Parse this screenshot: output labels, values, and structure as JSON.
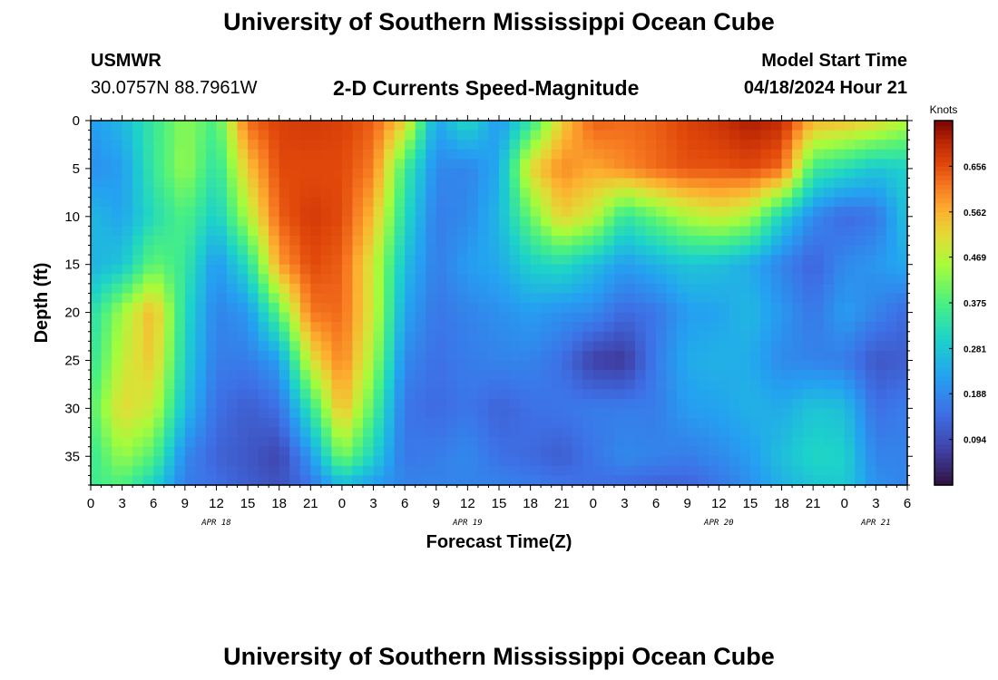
{
  "page": {
    "title": "University of Southern Mississippi Ocean Cube",
    "title_repeat": "University of Southern Mississippi Ocean Cube",
    "station_id": "USMWR",
    "station_coords": "30.0757N  88.7961W",
    "chart_title": "2-D Currents Speed-Magnitude",
    "model_start_label": "Model Start Time",
    "model_start_value": "04/18/2024 Hour 21"
  },
  "chart_data": {
    "type": "heatmap",
    "title": "2-D Currents Speed-Magnitude",
    "xlabel": "Forecast Time(Z)",
    "ylabel": "Depth (ft)",
    "x_range_hours": [
      0,
      78
    ],
    "x_tick_step_hours": 3,
    "x_tick_labels": [
      "0",
      "3",
      "6",
      "9",
      "12",
      "15",
      "18",
      "21",
      "0",
      "3",
      "6",
      "9",
      "12",
      "15",
      "18",
      "21",
      "0",
      "3",
      "6",
      "9",
      "12",
      "15",
      "18",
      "21",
      "0",
      "3",
      "6"
    ],
    "date_labels": [
      {
        "label": "APR 18",
        "hour": 12
      },
      {
        "label": "APR 19",
        "hour": 36
      },
      {
        "label": "APR 20",
        "hour": 60
      },
      {
        "label": "APR 21",
        "hour": 75
      }
    ],
    "y_range_ft": [
      0,
      38
    ],
    "y_ticks": [
      0,
      5,
      10,
      15,
      20,
      25,
      30,
      35
    ],
    "colorbar": {
      "unit": "Knots",
      "range": [
        0,
        0.75
      ],
      "ticks": [
        "0.656",
        "0.562",
        "0.469",
        "0.375",
        "0.281",
        "0.188",
        "0.094"
      ],
      "tick_values": [
        0.656,
        0.562,
        0.469,
        0.375,
        0.281,
        0.188,
        0.094
      ],
      "colormap": "turbo"
    },
    "grid": false,
    "speed_field_knots": {
      "hours": [
        0,
        3,
        6,
        9,
        12,
        15,
        18,
        21,
        24,
        27,
        30,
        33,
        36,
        39,
        42,
        45,
        48,
        51,
        54,
        57,
        60,
        63,
        66,
        69,
        72,
        75,
        78
      ],
      "depths_ft": [
        0,
        5,
        10,
        15,
        20,
        25,
        30,
        35,
        38
      ],
      "values": [
        [
          0.22,
          0.26,
          0.35,
          0.43,
          0.37,
          0.63,
          0.67,
          0.68,
          0.67,
          0.64,
          0.53,
          0.23,
          0.32,
          0.21,
          0.34,
          0.53,
          0.64,
          0.63,
          0.64,
          0.67,
          0.69,
          0.72,
          0.7,
          0.56,
          0.55,
          0.52,
          0.46
        ],
        [
          0.2,
          0.22,
          0.35,
          0.44,
          0.33,
          0.54,
          0.66,
          0.66,
          0.66,
          0.61,
          0.36,
          0.19,
          0.18,
          0.24,
          0.52,
          0.6,
          0.57,
          0.6,
          0.63,
          0.65,
          0.65,
          0.66,
          0.63,
          0.36,
          0.32,
          0.28,
          0.3
        ],
        [
          0.26,
          0.23,
          0.32,
          0.38,
          0.29,
          0.46,
          0.64,
          0.68,
          0.66,
          0.55,
          0.32,
          0.17,
          0.19,
          0.26,
          0.4,
          0.53,
          0.48,
          0.34,
          0.4,
          0.46,
          0.49,
          0.45,
          0.3,
          0.19,
          0.14,
          0.16,
          0.28
        ],
        [
          0.25,
          0.28,
          0.4,
          0.35,
          0.21,
          0.32,
          0.58,
          0.66,
          0.64,
          0.49,
          0.27,
          0.17,
          0.22,
          0.24,
          0.3,
          0.32,
          0.27,
          0.22,
          0.25,
          0.28,
          0.27,
          0.24,
          0.18,
          0.13,
          0.19,
          0.21,
          0.24
        ],
        [
          0.32,
          0.45,
          0.56,
          0.32,
          0.18,
          0.21,
          0.39,
          0.62,
          0.63,
          0.49,
          0.23,
          0.16,
          0.18,
          0.2,
          0.22,
          0.2,
          0.19,
          0.14,
          0.16,
          0.22,
          0.23,
          0.26,
          0.21,
          0.16,
          0.22,
          0.18,
          0.14
        ],
        [
          0.34,
          0.48,
          0.54,
          0.3,
          0.17,
          0.17,
          0.22,
          0.5,
          0.61,
          0.45,
          0.19,
          0.15,
          0.17,
          0.18,
          0.18,
          0.15,
          0.07,
          0.06,
          0.17,
          0.24,
          0.25,
          0.24,
          0.19,
          0.18,
          0.17,
          0.11,
          0.12
        ],
        [
          0.38,
          0.52,
          0.48,
          0.27,
          0.15,
          0.12,
          0.15,
          0.34,
          0.56,
          0.38,
          0.16,
          0.14,
          0.16,
          0.13,
          0.15,
          0.16,
          0.17,
          0.17,
          0.17,
          0.22,
          0.23,
          0.25,
          0.24,
          0.28,
          0.27,
          0.15,
          0.17
        ],
        [
          0.35,
          0.44,
          0.38,
          0.19,
          0.13,
          0.11,
          0.08,
          0.21,
          0.42,
          0.3,
          0.16,
          0.17,
          0.19,
          0.15,
          0.14,
          0.12,
          0.16,
          0.19,
          0.18,
          0.17,
          0.19,
          0.22,
          0.27,
          0.31,
          0.3,
          0.18,
          0.18
        ],
        [
          0.36,
          0.38,
          0.3,
          0.17,
          0.15,
          0.12,
          0.1,
          0.16,
          0.26,
          0.22,
          0.18,
          0.18,
          0.18,
          0.18,
          0.17,
          0.16,
          0.15,
          0.14,
          0.13,
          0.13,
          0.16,
          0.2,
          0.25,
          0.28,
          0.29,
          0.2,
          0.18
        ]
      ]
    }
  }
}
